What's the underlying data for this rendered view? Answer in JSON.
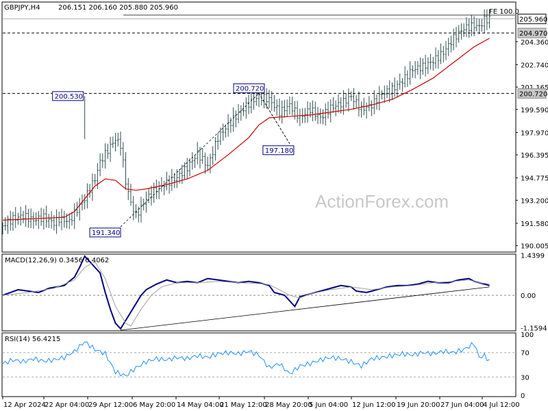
{
  "header": {
    "symbol": "GBPJPY,H4",
    "ohlc": "206.151 206.160 205.880 205.960"
  },
  "watermark": "ActionForex.com",
  "fe_label": "FE 100.0",
  "price_panel": {
    "ylim": [
      189.6,
      207.1
    ],
    "yticks": [
      "190.005",
      "191.580",
      "193.200",
      "194.775",
      "196.395",
      "197.970",
      "199.590",
      "201.165",
      "202.740",
      "204.360",
      "205.960"
    ],
    "current_price_tag": "205.960",
    "level_tags": [
      "204.970",
      "200.720"
    ],
    "levels": [
      204.97,
      200.72
    ],
    "annotations": [
      {
        "text": "200.530",
        "price": 200.53
      },
      {
        "text": "191.340",
        "price": 191.34
      },
      {
        "text": "200.720",
        "price": 200.72
      },
      {
        "text": "197.180",
        "price": 197.18
      }
    ]
  },
  "macd_panel": {
    "title": "MACD(12,26,9) 0.3456 0.4062",
    "ylim": [
      -1.25,
      1.45
    ],
    "yticks": [
      "1.4399",
      "0.00",
      "-1.1594"
    ],
    "zero_tag": "0.00"
  },
  "rsi_panel": {
    "title": "RSI(14) 56.4215",
    "ylim": [
      0,
      100
    ],
    "yticks": [
      "100",
      "70",
      "30",
      "0"
    ]
  },
  "x_axis": {
    "ticks": [
      "12 Apr 2024",
      "22 Apr 04:00",
      "29 Apr 12:00",
      "6 May 20:00",
      "14 May 04:00",
      "21 May 12:00",
      "28 May 20:00",
      "5 Jun 04:00",
      "12 Jun 12:00",
      "19 Jun 20:00",
      "27 Jun 04:00",
      "4 Jul 12:00"
    ]
  },
  "colors": {
    "candle": "#2f4f4f",
    "moving_average": "#cc0000",
    "macd_line": "#000080",
    "signal_line": "#a0a0a0",
    "rsi_line": "#1e90ff",
    "annotation_text": "#000080"
  },
  "chart_data": [
    {
      "type": "candlestick",
      "title": "GBPJPY,H4",
      "x_index_range": [
        0,
        100
      ],
      "close_path": [
        [
          0,
          191.4
        ],
        [
          2,
          191.9
        ],
        [
          4,
          192.1
        ],
        [
          6,
          191.8
        ],
        [
          8,
          192.0
        ],
        [
          10,
          191.6
        ],
        [
          11,
          191.9
        ],
        [
          13,
          191.7
        ],
        [
          14,
          192.3
        ],
        [
          16,
          193.3
        ],
        [
          18,
          194.7
        ],
        [
          19,
          195.9
        ],
        [
          21,
          197.0
        ],
        [
          22,
          197.5
        ],
        [
          23,
          197.1
        ],
        [
          24,
          194.5
        ],
        [
          25,
          193.0
        ],
        [
          26,
          192.1
        ],
        [
          28,
          193.3
        ],
        [
          30,
          194.0
        ],
        [
          32,
          194.4
        ],
        [
          34,
          194.8
        ],
        [
          36,
          195.5
        ],
        [
          38,
          196.5
        ],
        [
          40,
          195.6
        ],
        [
          42,
          197.6
        ],
        [
          44,
          198.5
        ],
        [
          46,
          199.3
        ],
        [
          48,
          200.0
        ],
        [
          50,
          200.5
        ],
        [
          52,
          200.3
        ],
        [
          54,
          199.4
        ],
        [
          56,
          199.9
        ],
        [
          58,
          199.0
        ],
        [
          60,
          199.6
        ],
        [
          62,
          199.0
        ],
        [
          64,
          199.7
        ],
        [
          66,
          200.0
        ],
        [
          68,
          200.5
        ],
        [
          70,
          199.6
        ],
        [
          72,
          199.9
        ],
        [
          74,
          200.7
        ],
        [
          76,
          201.0
        ],
        [
          78,
          201.6
        ],
        [
          80,
          202.4
        ],
        [
          82,
          202.6
        ],
        [
          84,
          203.0
        ],
        [
          86,
          203.6
        ],
        [
          88,
          204.6
        ],
        [
          90,
          205.3
        ],
        [
          92,
          205.5
        ],
        [
          93,
          205.4
        ],
        [
          94,
          205.9
        ],
        [
          95,
          205.96
        ]
      ],
      "moving_average_path": [
        [
          0,
          191.8
        ],
        [
          12,
          192.0
        ],
        [
          14,
          192.4
        ],
        [
          16,
          193.3
        ],
        [
          18,
          194.2
        ],
        [
          20,
          194.7
        ],
        [
          22,
          194.6
        ],
        [
          24,
          194.0
        ],
        [
          26,
          193.9
        ],
        [
          28,
          194.0
        ],
        [
          32,
          194.3
        ],
        [
          36,
          194.7
        ],
        [
          40,
          195.3
        ],
        [
          44,
          196.4
        ],
        [
          48,
          197.6
        ],
        [
          50,
          198.5
        ],
        [
          52,
          199.0
        ],
        [
          56,
          199.1
        ],
        [
          60,
          199.2
        ],
        [
          64,
          199.4
        ],
        [
          68,
          199.6
        ],
        [
          72,
          199.9
        ],
        [
          76,
          200.3
        ],
        [
          80,
          201.0
        ],
        [
          84,
          201.8
        ],
        [
          88,
          202.9
        ],
        [
          92,
          204.0
        ],
        [
          95,
          204.6
        ]
      ],
      "levels": [
        204.97,
        200.72
      ],
      "annotations": [
        {
          "text": "200.530",
          "x_index": 16,
          "price": 200.53
        },
        {
          "text": "191.340",
          "x_index": 23,
          "price": 191.34
        },
        {
          "text": "200.720",
          "x_index": 50,
          "price": 200.72
        },
        {
          "text": "197.180",
          "x_index": 56,
          "price": 197.18
        }
      ]
    },
    {
      "type": "line",
      "title": "MACD(12,26,9) 0.3456 0.4062",
      "series": [
        {
          "name": "MACD",
          "points": [
            [
              0,
              0.0
            ],
            [
              3,
              0.2
            ],
            [
              5,
              0.15
            ],
            [
              7,
              0.1
            ],
            [
              9,
              0.25
            ],
            [
              12,
              0.35
            ],
            [
              14,
              0.65
            ],
            [
              15,
              1.0
            ],
            [
              16,
              1.4
            ],
            [
              17,
              1.2
            ],
            [
              19,
              0.8
            ],
            [
              20,
              0.1
            ],
            [
              21,
              -0.5
            ],
            [
              22,
              -1.0
            ],
            [
              23,
              -1.2
            ],
            [
              24,
              -0.9
            ],
            [
              26,
              -0.3
            ],
            [
              27,
              0.0
            ],
            [
              28,
              0.2
            ],
            [
              30,
              0.4
            ],
            [
              32,
              0.55
            ],
            [
              34,
              0.45
            ],
            [
              36,
              0.5
            ],
            [
              38,
              0.45
            ],
            [
              40,
              0.6
            ],
            [
              42,
              0.55
            ],
            [
              44,
              0.5
            ],
            [
              46,
              0.45
            ],
            [
              48,
              0.5
            ],
            [
              50,
              0.45
            ],
            [
              52,
              0.35
            ],
            [
              53,
              0.1
            ],
            [
              55,
              0.0
            ],
            [
              56,
              -0.2
            ],
            [
              57,
              -0.4
            ],
            [
              58,
              -0.05
            ],
            [
              60,
              0.05
            ],
            [
              62,
              0.15
            ],
            [
              64,
              0.25
            ],
            [
              66,
              0.35
            ],
            [
              68,
              0.3
            ],
            [
              69,
              0.15
            ],
            [
              71,
              0.1
            ],
            [
              73,
              0.2
            ],
            [
              75,
              0.3
            ],
            [
              77,
              0.35
            ],
            [
              79,
              0.35
            ],
            [
              81,
              0.4
            ],
            [
              83,
              0.5
            ],
            [
              85,
              0.45
            ],
            [
              87,
              0.45
            ],
            [
              89,
              0.55
            ],
            [
              91,
              0.6
            ],
            [
              92,
              0.5
            ],
            [
              93,
              0.45
            ],
            [
              95,
              0.35
            ]
          ]
        },
        {
          "name": "Signal",
          "points": [
            [
              0,
              0.0
            ],
            [
              5,
              0.1
            ],
            [
              10,
              0.25
            ],
            [
              14,
              0.55
            ],
            [
              16,
              1.0
            ],
            [
              18,
              1.2
            ],
            [
              20,
              0.6
            ],
            [
              22,
              -0.4
            ],
            [
              24,
              -1.0
            ],
            [
              25,
              -1.1
            ],
            [
              27,
              -0.5
            ],
            [
              29,
              0.0
            ],
            [
              31,
              0.3
            ],
            [
              34,
              0.45
            ],
            [
              38,
              0.45
            ],
            [
              42,
              0.5
            ],
            [
              46,
              0.45
            ],
            [
              50,
              0.42
            ],
            [
              52,
              0.38
            ],
            [
              54,
              0.2
            ],
            [
              56,
              0.0
            ],
            [
              58,
              -0.1
            ],
            [
              60,
              0.05
            ],
            [
              64,
              0.2
            ],
            [
              68,
              0.3
            ],
            [
              72,
              0.2
            ],
            [
              76,
              0.3
            ],
            [
              80,
              0.35
            ],
            [
              84,
              0.45
            ],
            [
              88,
              0.5
            ],
            [
              91,
              0.55
            ],
            [
              93,
              0.45
            ],
            [
              95,
              0.41
            ]
          ]
        },
        {
          "name": "Trendline",
          "points": [
            [
              23,
              -1.25
            ],
            [
              95,
              0.3
            ]
          ]
        }
      ],
      "ylim": [
        -1.25,
        1.45
      ]
    },
    {
      "type": "line",
      "title": "RSI(14) 56.4215",
      "series": [
        {
          "name": "RSI",
          "points": [
            [
              0,
              52
            ],
            [
              2,
              58
            ],
            [
              4,
              55
            ],
            [
              6,
              60
            ],
            [
              8,
              56
            ],
            [
              10,
              58
            ],
            [
              12,
              62
            ],
            [
              14,
              72
            ],
            [
              16,
              88
            ],
            [
              18,
              75
            ],
            [
              20,
              68
            ],
            [
              22,
              38
            ],
            [
              24,
              32
            ],
            [
              26,
              45
            ],
            [
              28,
              55
            ],
            [
              30,
              60
            ],
            [
              32,
              58
            ],
            [
              34,
              62
            ],
            [
              36,
              60
            ],
            [
              38,
              65
            ],
            [
              40,
              62
            ],
            [
              42,
              68
            ],
            [
              44,
              70
            ],
            [
              46,
              68
            ],
            [
              48,
              72
            ],
            [
              50,
              66
            ],
            [
              52,
              45
            ],
            [
              54,
              52
            ],
            [
              56,
              35
            ],
            [
              58,
              48
            ],
            [
              60,
              52
            ],
            [
              62,
              58
            ],
            [
              64,
              62
            ],
            [
              66,
              60
            ],
            [
              68,
              55
            ],
            [
              70,
              48
            ],
            [
              72,
              60
            ],
            [
              74,
              62
            ],
            [
              76,
              65
            ],
            [
              78,
              68
            ],
            [
              80,
              66
            ],
            [
              82,
              70
            ],
            [
              84,
              68
            ],
            [
              86,
              72
            ],
            [
              88,
              70
            ],
            [
              90,
              75
            ],
            [
              92,
              85
            ],
            [
              93,
              62
            ],
            [
              94,
              65
            ],
            [
              95,
              56
            ]
          ]
        }
      ],
      "ylim": [
        0,
        100
      ],
      "reference_levels": [
        70,
        30
      ]
    }
  ]
}
